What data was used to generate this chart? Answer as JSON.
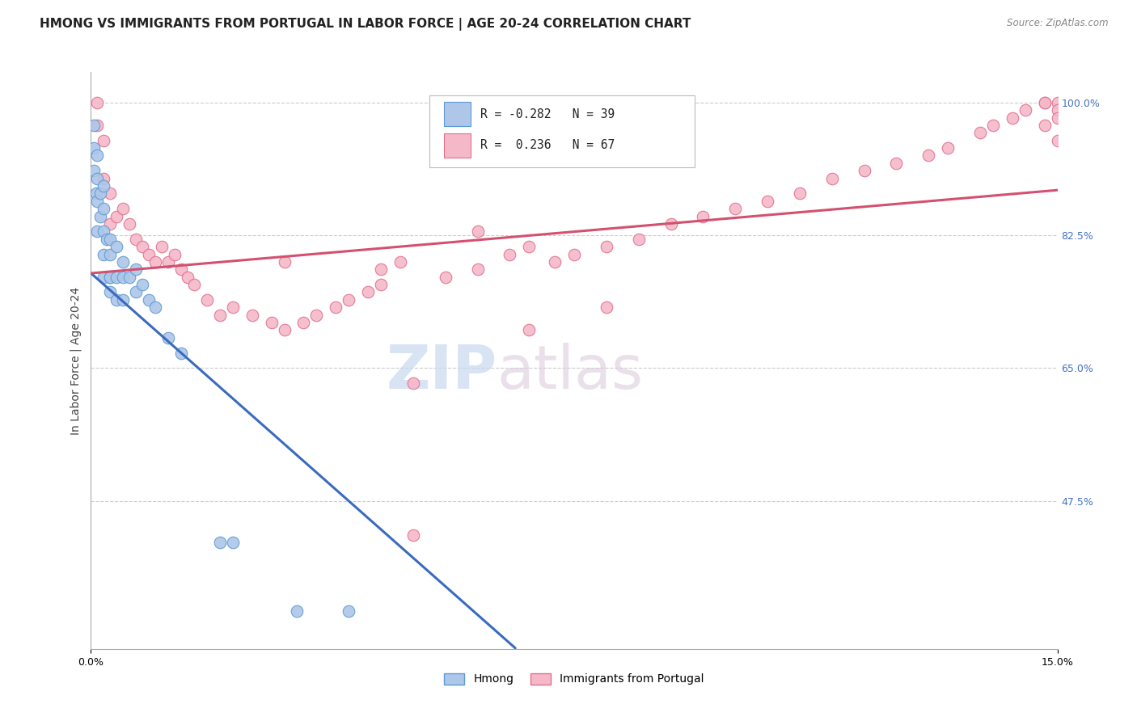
{
  "title": "HMONG VS IMMIGRANTS FROM PORTUGAL IN LABOR FORCE | AGE 20-24 CORRELATION CHART",
  "source": "Source: ZipAtlas.com",
  "ylabel": "In Labor Force | Age 20-24",
  "x_min": 0.0,
  "x_max": 0.15,
  "y_min": 0.28,
  "y_max": 1.04,
  "y_ticks": [
    0.475,
    0.65,
    0.825,
    1.0
  ],
  "y_tick_labels": [
    "47.5%",
    "65.0%",
    "82.5%",
    "100.0%"
  ],
  "hmong_color": "#aec6e8",
  "portugal_color": "#f5b8c8",
  "hmong_edge_color": "#5b9bd5",
  "portugal_edge_color": "#e07090",
  "hmong_line_color": "#3a6bbf",
  "portugal_line_color": "#d45070",
  "watermark_text": "ZIPatlas",
  "background_color": "#ffffff",
  "grid_color": "#cccccc",
  "title_fontsize": 11,
  "axis_fontsize": 10,
  "tick_fontsize": 9,
  "right_tick_color": "#4472c4",
  "hmong_x": [
    0.0005,
    0.0005,
    0.0005,
    0.0008,
    0.001,
    0.001,
    0.001,
    0.001,
    0.0015,
    0.0015,
    0.002,
    0.002,
    0.002,
    0.002,
    0.002,
    0.0025,
    0.003,
    0.003,
    0.003,
    0.003,
    0.003,
    0.004,
    0.004,
    0.004,
    0.005,
    0.005,
    0.005,
    0.006,
    0.007,
    0.007,
    0.008,
    0.009,
    0.01,
    0.012,
    0.014,
    0.02,
    0.022,
    0.032,
    0.04
  ],
  "hmong_y": [
    0.97,
    0.94,
    0.91,
    0.88,
    0.93,
    0.9,
    0.87,
    0.83,
    0.88,
    0.85,
    0.89,
    0.86,
    0.83,
    0.8,
    0.77,
    0.82,
    0.82,
    0.8,
    0.77,
    0.77,
    0.75,
    0.81,
    0.77,
    0.74,
    0.79,
    0.77,
    0.74,
    0.77,
    0.78,
    0.75,
    0.76,
    0.74,
    0.73,
    0.69,
    0.67,
    0.42,
    0.42,
    0.33,
    0.33
  ],
  "portugal_x": [
    0.001,
    0.001,
    0.002,
    0.002,
    0.003,
    0.003,
    0.004,
    0.005,
    0.006,
    0.007,
    0.008,
    0.009,
    0.01,
    0.011,
    0.012,
    0.013,
    0.014,
    0.015,
    0.016,
    0.018,
    0.02,
    0.022,
    0.025,
    0.028,
    0.03,
    0.033,
    0.035,
    0.038,
    0.04,
    0.043,
    0.045,
    0.048,
    0.05,
    0.055,
    0.06,
    0.065,
    0.068,
    0.072,
    0.075,
    0.08,
    0.085,
    0.09,
    0.095,
    0.1,
    0.105,
    0.11,
    0.115,
    0.12,
    0.125,
    0.13,
    0.133,
    0.138,
    0.14,
    0.143,
    0.145,
    0.148,
    0.15,
    0.15,
    0.15,
    0.148,
    0.148,
    0.15,
    0.05,
    0.068,
    0.08,
    0.03,
    0.045,
    0.06
  ],
  "portugal_y": [
    1.0,
    0.97,
    0.95,
    0.9,
    0.88,
    0.84,
    0.85,
    0.86,
    0.84,
    0.82,
    0.81,
    0.8,
    0.79,
    0.81,
    0.79,
    0.8,
    0.78,
    0.77,
    0.76,
    0.74,
    0.72,
    0.73,
    0.72,
    0.71,
    0.7,
    0.71,
    0.72,
    0.73,
    0.74,
    0.75,
    0.78,
    0.79,
    0.43,
    0.77,
    0.78,
    0.8,
    0.81,
    0.79,
    0.8,
    0.81,
    0.82,
    0.84,
    0.85,
    0.86,
    0.87,
    0.88,
    0.9,
    0.91,
    0.92,
    0.93,
    0.94,
    0.96,
    0.97,
    0.98,
    0.99,
    1.0,
    1.0,
    0.99,
    0.98,
    0.97,
    1.0,
    0.95,
    0.63,
    0.7,
    0.73,
    0.79,
    0.76,
    0.83
  ]
}
